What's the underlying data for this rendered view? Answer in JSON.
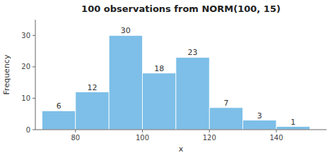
{
  "chart_data": {
    "type": "histogram",
    "title": "100 observations from NORM(100, 15)",
    "xlabel": "x",
    "ylabel": "Frequency",
    "bins": [
      70,
      80,
      90,
      100,
      110,
      120,
      130,
      140,
      150
    ],
    "values": [
      6,
      12,
      30,
      18,
      23,
      7,
      3,
      1
    ],
    "color": "#7dbfe8",
    "xlim": [
      68,
      155
    ],
    "ylim": [
      0,
      35
    ],
    "xticks": [
      80,
      100,
      120,
      140
    ],
    "yticks": [
      0,
      10,
      20,
      30
    ],
    "grid": false,
    "data_labels": true
  }
}
